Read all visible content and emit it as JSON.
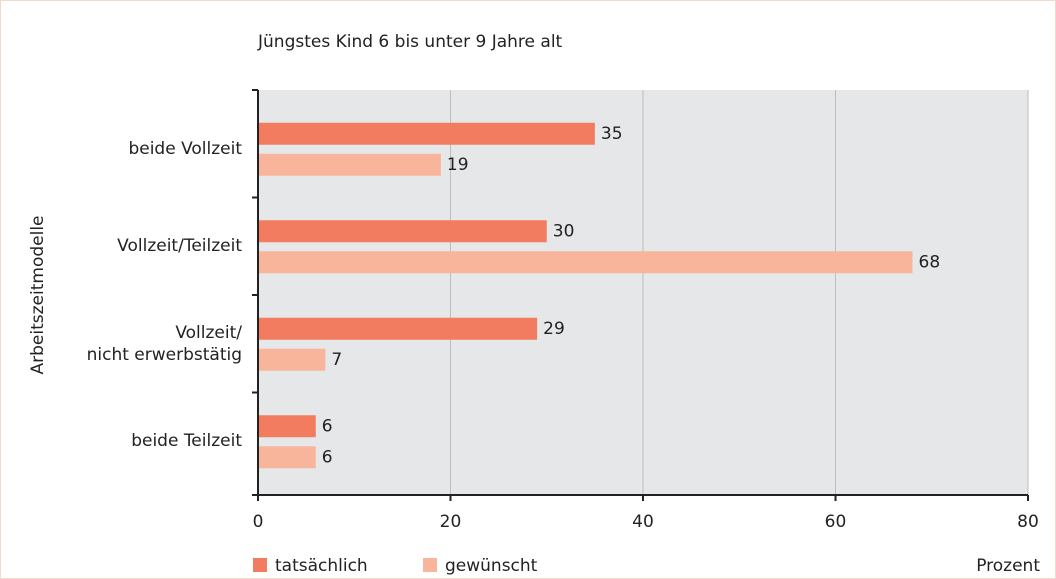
{
  "chart_data": {
    "type": "barh",
    "title": "Jüngstes Kind 6 bis unter 9 Jahre alt",
    "y_label": "Arbeitszeitmodelle",
    "x_label": "Prozent",
    "categories": [
      "beide Vollzeit",
      "Vollzeit/Teilzeit",
      "Vollzeit/\nnicht erwerbstätig",
      "beide Teilzeit"
    ],
    "series": [
      {
        "name": "tatsächlich",
        "color": "#f27c5f",
        "values": [
          35,
          30,
          29,
          6
        ]
      },
      {
        "name": "gewünscht",
        "color": "#f9b59c",
        "values": [
          19,
          68,
          7,
          6
        ]
      }
    ],
    "xlim": [
      0,
      80
    ],
    "xticks": [
      0,
      20,
      40,
      60,
      80
    ],
    "grid": true
  }
}
